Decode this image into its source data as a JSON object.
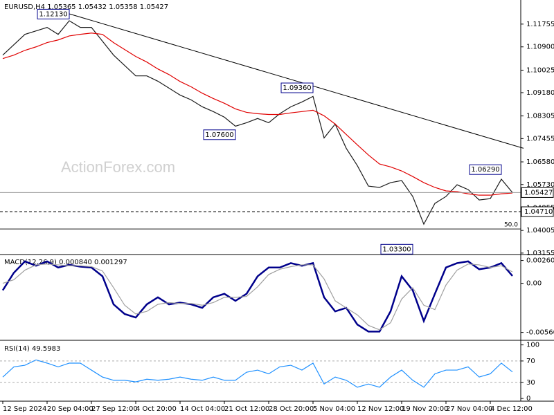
{
  "chart_data": [
    {
      "type": "line",
      "title": "EURUSD,H4  1.05365 1.05432 1.05358 1.05427",
      "watermark": "ActionForex.com",
      "categories": [
        "12 Sep 2024",
        null,
        null,
        null,
        "20 Sep 04:00",
        null,
        null,
        null,
        "27 Sep 12:00",
        null,
        null,
        null,
        "4 Oct 20:00",
        null,
        null,
        null,
        "14 Oct 04:00",
        null,
        null,
        null,
        "21 Oct 12:00",
        null,
        null,
        null,
        "28 Oct 20:00",
        null,
        null,
        null,
        "5 Nov 04:00",
        null,
        null,
        null,
        "12 Nov 12:00",
        null,
        null,
        null,
        "19 Nov 20:00",
        null,
        null,
        null,
        "27 Nov 04:00",
        null,
        null,
        null,
        "4 Dec 12:00",
        null,
        null
      ],
      "series": [
        {
          "color": "#1a1a1a",
          "values": [
            1.1059,
            1.1098,
            1.1137,
            1.115,
            1.1163,
            1.1137,
            1.1188,
            1.1163,
            1.1163,
            1.1111,
            1.1059,
            1.102,
            1.0981,
            1.0981,
            1.0961,
            1.0935,
            1.0909,
            1.0891,
            1.0865,
            1.0847,
            1.0826,
            1.0792,
            1.0805,
            1.0821,
            1.0805,
            1.0839,
            1.0865,
            1.0883,
            1.0904,
            1.0748,
            1.08,
            1.0709,
            1.0644,
            1.0567,
            1.0562,
            1.058,
            1.0588,
            1.0528,
            1.0424,
            1.0502,
            1.0528,
            1.0572,
            1.0554,
            1.0515,
            1.052,
            1.0593,
            1.05427
          ]
        },
        {
          "color": "#e00000",
          "values": [
            1.1046,
            1.1059,
            1.1077,
            1.109,
            1.1106,
            1.1116,
            1.1131,
            1.1137,
            1.1142,
            1.1137,
            1.1106,
            1.108,
            1.1054,
            1.1033,
            1.1007,
            1.0986,
            1.096,
            1.094,
            1.0916,
            1.0896,
            1.0878,
            1.0857,
            1.0844,
            1.0839,
            1.0836,
            1.0836,
            1.0842,
            1.0847,
            1.0852,
            1.0831,
            1.08,
            1.0761,
            1.0722,
            1.0684,
            1.065,
            1.0639,
            1.0624,
            1.0603,
            1.058,
            1.0562,
            1.0549,
            1.0546,
            1.0538,
            1.0533,
            1.0533,
            1.0538,
            1.0541
          ]
        }
      ],
      "ylim": [
        1.031,
        1.1266
      ],
      "yticks": [
        1.11755,
        {
          "value": 1.109,
          "label": "1.10900"
        },
        1.10025,
        {
          "value": 1.0918,
          "label": "1.09180"
        },
        1.08305,
        1.07455,
        {
          "value": 1.0658,
          "label": "1.06580"
        },
        {
          "value": 1.0573,
          "label": "1.05730"
        },
        1.04855,
        1.04005,
        1.03155
      ],
      "trendline": {
        "x": [
          6,
          47
        ],
        "values": [
          1.1214,
          1.0709
        ]
      },
      "levels": [
        {
          "value": 1.05427,
          "label": "1.05427",
          "style": "solid"
        },
        {
          "value": 1.0471,
          "label": "1.04710",
          "style": "dashed"
        }
      ],
      "fib": {
        "price": 1.0406,
        "label": "50.0"
      },
      "annotations": [
        {
          "x": 6,
          "value": 1.1213,
          "label": "1.12130"
        },
        {
          "x": 28,
          "value": 1.0936,
          "label": "1.09360"
        },
        {
          "x": 21,
          "value": 1.076,
          "label": "1.07600"
        },
        {
          "x": 37,
          "value": 1.033,
          "label": "1.03300"
        },
        {
          "x": 45,
          "value": 1.0629,
          "label": "1.06290"
        }
      ]
    },
    {
      "type": "line",
      "title": "MACD(12,26,9) 0.000840 0.001297",
      "series": [
        {
          "color": "#00008b",
          "values": [
            -0.0008,
            0.0012,
            0.0025,
            0.002,
            0.0025,
            0.0018,
            0.0021,
            0.0019,
            0.0018,
            0.0008,
            -0.0024,
            -0.0035,
            -0.0039,
            -0.0024,
            -0.0016,
            -0.0024,
            -0.0022,
            -0.0024,
            -0.0028,
            -0.0016,
            -0.0012,
            -0.002,
            -0.0012,
            0.0008,
            0.0018,
            0.0018,
            0.0023,
            0.002,
            0.0023,
            -0.0016,
            -0.0032,
            -0.0028,
            -0.0047,
            -0.0055,
            -0.0055,
            -0.0032,
            0.0008,
            -0.0008,
            -0.0043,
            -0.0012,
            0.0018,
            0.0023,
            0.0025,
            0.0016,
            0.0018,
            0.0023,
            0.00084
          ]
        },
        {
          "color": "#a0a0a0",
          "values": [
            0.0,
            0.0004,
            0.0015,
            0.0021,
            0.0022,
            0.0021,
            0.002,
            0.002,
            0.0019,
            0.0014,
            -0.0005,
            -0.0025,
            -0.0035,
            -0.0032,
            -0.0024,
            -0.0022,
            -0.0023,
            -0.0023,
            -0.0025,
            -0.0022,
            -0.0016,
            -0.0016,
            -0.0015,
            -0.0004,
            0.001,
            0.0016,
            0.0019,
            0.0021,
            0.0021,
            0.0005,
            -0.002,
            -0.0028,
            -0.0036,
            -0.0048,
            -0.0053,
            -0.0045,
            -0.0018,
            -0.0005,
            -0.0025,
            -0.003,
            -0.0002,
            0.0015,
            0.0022,
            0.0021,
            0.0018,
            0.002,
            0.001297
          ]
        }
      ],
      "ylim": [
        -0.0065,
        0.0032
      ],
      "yticks": [
        0.002603,
        {
          "value": 0,
          "label": "0.00"
        },
        -0.005604
      ]
    },
    {
      "type": "line",
      "title": "RSI(14) 49.5983",
      "series": [
        {
          "color": "#1e90ff",
          "values": [
            40,
            59,
            62,
            72,
            66,
            59,
            66,
            66,
            53,
            40,
            34,
            34,
            31,
            36,
            34,
            36,
            40,
            36,
            34,
            40,
            34,
            34,
            49,
            53,
            46,
            59,
            62,
            53,
            66,
            27,
            40,
            34,
            21,
            27,
            21,
            40,
            53,
            34,
            21,
            46,
            53,
            53,
            59,
            40,
            46,
            66,
            49.5983
          ]
        }
      ],
      "ylim": [
        -5,
        106
      ],
      "yticks": [
        100,
        70,
        30,
        0
      ],
      "dashed_levels": [
        70,
        30
      ]
    }
  ]
}
